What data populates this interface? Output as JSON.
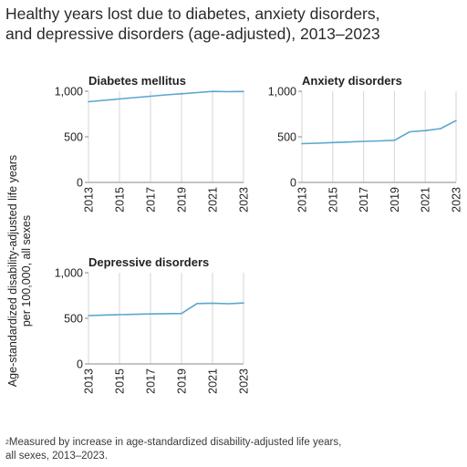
{
  "title": {
    "line1": "Healthy years lost due to diabetes, anxiety disorders,",
    "line2": "and depressive disorders (age-adjusted), 2013–2023"
  },
  "y_axis_label": {
    "line1": "Age-standardized disability-adjusted life years",
    "line2": "per 100,000, all sexes"
  },
  "footnote": {
    "marker": "2",
    "line1": "Measured by increase in age-standardized disability-adjusted life years,",
    "line2": "all sexes, 2013–2023."
  },
  "colors": {
    "line": "#5aa6d0",
    "grid": "#d6d6d6",
    "axis": "#8a8a8a",
    "text": "#222222"
  },
  "chart_data": [
    {
      "type": "line",
      "title": "Diabetes mellitus",
      "x": [
        2013,
        2014,
        2015,
        2016,
        2017,
        2018,
        2019,
        2020,
        2021,
        2022,
        2023
      ],
      "values": [
        885,
        900,
        915,
        930,
        945,
        960,
        972,
        985,
        998,
        995,
        997
      ],
      "xticks": [
        "2013",
        "2015",
        "2017",
        "2019",
        "2021",
        "2023"
      ],
      "yticks": [
        "0",
        "500",
        "1,000"
      ],
      "ylim": [
        0,
        1000
      ],
      "grid": "vertical"
    },
    {
      "type": "line",
      "title": "Anxiety disorders",
      "x": [
        2013,
        2014,
        2015,
        2016,
        2017,
        2018,
        2019,
        2020,
        2021,
        2022,
        2023
      ],
      "values": [
        425,
        430,
        437,
        443,
        450,
        455,
        462,
        555,
        568,
        590,
        678
      ],
      "xticks": [
        "2013",
        "2015",
        "2017",
        "2019",
        "2021",
        "2023"
      ],
      "yticks": [
        "0",
        "500",
        "1,000"
      ],
      "ylim": [
        0,
        1000
      ],
      "grid": "vertical"
    },
    {
      "type": "line",
      "title": "Depressive disorders",
      "x": [
        2013,
        2014,
        2015,
        2016,
        2017,
        2018,
        2019,
        2020,
        2021,
        2022,
        2023
      ],
      "values": [
        530,
        536,
        540,
        544,
        548,
        551,
        553,
        662,
        666,
        660,
        668
      ],
      "xticks": [
        "2013",
        "2015",
        "2017",
        "2019",
        "2021",
        "2023"
      ],
      "yticks": [
        "0",
        "500",
        "1,000"
      ],
      "ylim": [
        0,
        1000
      ],
      "grid": "vertical"
    }
  ]
}
